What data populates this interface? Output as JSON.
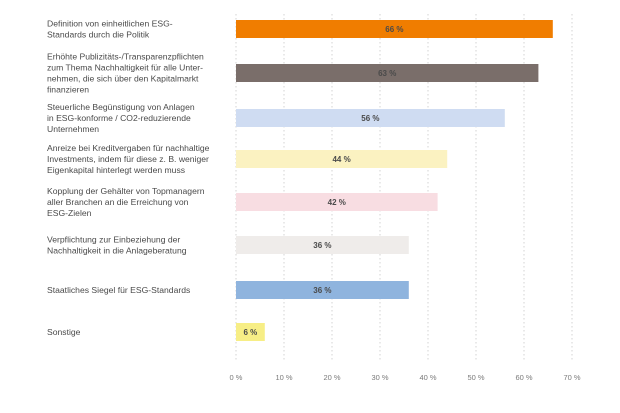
{
  "chart_data": {
    "type": "bar",
    "orientation": "horizontal",
    "categories": [
      [
        "Definition von einheitlichen ESG-",
        "Standards durch die Politik"
      ],
      [
        "Erhöhte Publizitäts-/Transparenzpflichten",
        "zum Thema Nachhaltigkeit für alle Unter-",
        "nehmen, die sich über den Kapitalmarkt",
        "finanzieren"
      ],
      [
        "Steuerliche Begünstigung von Anlagen",
        "in ESG-konforme / CO2-reduzierende",
        "Unternehmen"
      ],
      [
        "Anreize bei Kreditvergaben für nachhaltige",
        "Investments, indem für diese z. B. weniger",
        "Eigenkapital hinterlegt werden muss"
      ],
      [
        "Kopplung der Gehälter von Topmanagern",
        "aller Branchen an die Erreichung von",
        "ESG-Zielen"
      ],
      [
        "Verpflichtung zur Einbeziehung der",
        "Nachhaltigkeit in die Anlageberatung"
      ],
      [
        "Staatliches Siegel für ESG-Standards"
      ],
      [
        "Sonstige"
      ]
    ],
    "values": [
      66,
      63,
      56,
      44,
      42,
      36,
      36,
      6
    ],
    "value_labels": [
      "66 %",
      "63 %",
      "56 %",
      "44 %",
      "42 %",
      "36 %",
      "36 %",
      "6 %"
    ],
    "colors": [
      "#f07d00",
      "#7a6e6a",
      "#cfdcf2",
      "#fbf2c1",
      "#f8dde2",
      "#efecea",
      "#8fb4de",
      "#f7ee86"
    ],
    "label_colors": [
      "#ffffff",
      "#ffffff",
      "#4a4a4a",
      "#4a4a4a",
      "#4a4a4a",
      "#4a4a4a",
      "#ffffff",
      "#4a4a4a"
    ],
    "xlim": [
      0,
      70
    ],
    "xticks": [
      0,
      10,
      20,
      30,
      40,
      50,
      60,
      70
    ],
    "xtick_labels": [
      "0 %",
      "10 %",
      "20 %",
      "30 %",
      "40 %",
      "50 %",
      "60 %",
      "70 %"
    ],
    "grid": "vertical dotted",
    "title": "",
    "xlabel": "",
    "ylabel": ""
  }
}
